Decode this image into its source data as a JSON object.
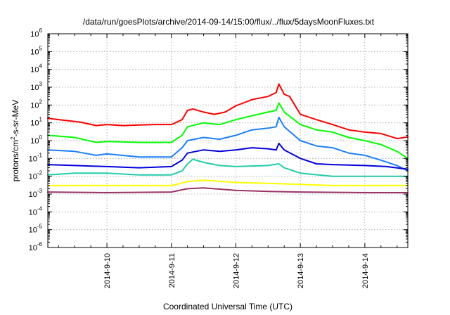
{
  "chart_data": {
    "type": "line",
    "title": "/data/run/goesPlots/archive/2014-09-14/15:00/flux/../flux/5daysMoonFluxes.txt",
    "xlabel": "Coordinated Universal Time (UTC)",
    "ylabel": {
      "base": "protons/cm",
      "sup": "2",
      "rest": "-s-sr-MeV"
    },
    "x_unit": "days",
    "xlim": [
      "2014-09-09 02:00",
      "2014-09-14 16:00"
    ],
    "y_scale": "log",
    "ylim": [
      1e-06,
      1000000.0
    ],
    "grid": true,
    "legend": "none",
    "x_ticks": [
      {
        "label": "2014-9-10",
        "value": "2014-09-10"
      },
      {
        "label": "2014-9-11",
        "value": "2014-09-11"
      },
      {
        "label": "2014-9-12",
        "value": "2014-09-12"
      },
      {
        "label": "2014-9-13",
        "value": "2014-09-13"
      },
      {
        "label": "2014-9-14",
        "value": "2014-09-14"
      }
    ],
    "y_ticks": [
      {
        "base": "10",
        "exp": "-6",
        "value": 1e-06
      },
      {
        "base": "10",
        "exp": "-5",
        "value": 1e-05
      },
      {
        "base": "10",
        "exp": "-4",
        "value": 0.0001
      },
      {
        "base": "10",
        "exp": "-3",
        "value": 0.001
      },
      {
        "base": "10",
        "exp": "-2",
        "value": 0.01
      },
      {
        "base": "10",
        "exp": "-1",
        "value": 0.1
      },
      {
        "base": "10",
        "exp": "0",
        "value": 1
      },
      {
        "base": "10",
        "exp": "1",
        "value": 10
      },
      {
        "base": "10",
        "exp": "2",
        "value": 100
      },
      {
        "base": "10",
        "exp": "3",
        "value": 1000
      },
      {
        "base": "10",
        "exp": "4",
        "value": 10000
      },
      {
        "base": "10",
        "exp": "5",
        "value": 100000
      },
      {
        "base": "10",
        "exp": "6",
        "value": 1000000
      }
    ],
    "series": [
      {
        "color": "#ff0000",
        "points": [
          [
            "2014-09-09 02:00",
            18
          ],
          [
            "2014-09-09 08:00",
            14
          ],
          [
            "2014-09-09 14:00",
            11
          ],
          [
            "2014-09-09 20:00",
            7
          ],
          [
            "2014-09-10 00:00",
            8
          ],
          [
            "2014-09-10 06:00",
            7
          ],
          [
            "2014-09-10 12:00",
            7.5
          ],
          [
            "2014-09-10 18:00",
            8
          ],
          [
            "2014-09-11 00:00",
            8
          ],
          [
            "2014-09-11 04:00",
            15
          ],
          [
            "2014-09-11 06:00",
            50
          ],
          [
            "2014-09-11 08:00",
            60
          ],
          [
            "2014-09-11 12:00",
            40
          ],
          [
            "2014-09-11 16:00",
            30
          ],
          [
            "2014-09-11 20:00",
            40
          ],
          [
            "2014-09-12 00:00",
            90
          ],
          [
            "2014-09-12 06:00",
            200
          ],
          [
            "2014-09-12 12:00",
            300
          ],
          [
            "2014-09-12 15:00",
            500
          ],
          [
            "2014-09-12 16:00",
            1500
          ],
          [
            "2014-09-12 18:00",
            400
          ],
          [
            "2014-09-12 20:00",
            300
          ],
          [
            "2014-09-13 00:00",
            30
          ],
          [
            "2014-09-13 06:00",
            15
          ],
          [
            "2014-09-13 12:00",
            8
          ],
          [
            "2014-09-13 18:00",
            4
          ],
          [
            "2014-09-14 00:00",
            3
          ],
          [
            "2014-09-14 06:00",
            2.5
          ],
          [
            "2014-09-14 12:00",
            1.3
          ],
          [
            "2014-09-14 16:00",
            1.6
          ]
        ]
      },
      {
        "color": "#00ff00",
        "points": [
          [
            "2014-09-09 02:00",
            2
          ],
          [
            "2014-09-09 12:00",
            1.5
          ],
          [
            "2014-09-09 20:00",
            0.8
          ],
          [
            "2014-09-10 00:00",
            0.9
          ],
          [
            "2014-09-10 12:00",
            0.8
          ],
          [
            "2014-09-11 00:00",
            0.8
          ],
          [
            "2014-09-11 04:00",
            2
          ],
          [
            "2014-09-11 06:00",
            6
          ],
          [
            "2014-09-11 12:00",
            10
          ],
          [
            "2014-09-11 18:00",
            8
          ],
          [
            "2014-09-12 00:00",
            15
          ],
          [
            "2014-09-12 06:00",
            25
          ],
          [
            "2014-09-12 12:00",
            40
          ],
          [
            "2014-09-12 15:00",
            50
          ],
          [
            "2014-09-12 16:00",
            130
          ],
          [
            "2014-09-12 18:00",
            40
          ],
          [
            "2014-09-13 00:00",
            8
          ],
          [
            "2014-09-13 06:00",
            4
          ],
          [
            "2014-09-13 12:00",
            3
          ],
          [
            "2014-09-13 18:00",
            1.5
          ],
          [
            "2014-09-14 00:00",
            1
          ],
          [
            "2014-09-14 06:00",
            0.6
          ],
          [
            "2014-09-14 12:00",
            0.25
          ],
          [
            "2014-09-14 16:00",
            0.1
          ]
        ]
      },
      {
        "color": "#1a7fff",
        "points": [
          [
            "2014-09-09 02:00",
            0.3
          ],
          [
            "2014-09-09 12:00",
            0.25
          ],
          [
            "2014-09-09 20:00",
            0.15
          ],
          [
            "2014-09-10 00:00",
            0.18
          ],
          [
            "2014-09-10 12:00",
            0.12
          ],
          [
            "2014-09-11 00:00",
            0.12
          ],
          [
            "2014-09-11 04:00",
            0.4
          ],
          [
            "2014-09-11 06:00",
            1
          ],
          [
            "2014-09-11 12:00",
            1.5
          ],
          [
            "2014-09-11 18:00",
            1.2
          ],
          [
            "2014-09-12 00:00",
            2
          ],
          [
            "2014-09-12 06:00",
            4
          ],
          [
            "2014-09-12 12:00",
            5
          ],
          [
            "2014-09-12 15:00",
            6
          ],
          [
            "2014-09-12 16:00",
            20
          ],
          [
            "2014-09-12 18:00",
            6
          ],
          [
            "2014-09-13 00:00",
            1
          ],
          [
            "2014-09-13 06:00",
            0.5
          ],
          [
            "2014-09-13 12:00",
            0.4
          ],
          [
            "2014-09-13 18:00",
            0.2
          ],
          [
            "2014-09-14 00:00",
            0.15
          ],
          [
            "2014-09-14 06:00",
            0.08
          ],
          [
            "2014-09-14 12:00",
            0.04
          ],
          [
            "2014-09-14 16:00",
            0.02
          ]
        ]
      },
      {
        "color": "#0000dd",
        "points": [
          [
            "2014-09-09 02:00",
            0.045
          ],
          [
            "2014-09-09 12:00",
            0.04
          ],
          [
            "2014-09-10 00:00",
            0.035
          ],
          [
            "2014-09-10 12:00",
            0.03
          ],
          [
            "2014-09-11 00:00",
            0.035
          ],
          [
            "2014-09-11 04:00",
            0.08
          ],
          [
            "2014-09-11 06:00",
            0.2
          ],
          [
            "2014-09-11 12:00",
            0.3
          ],
          [
            "2014-09-11 18:00",
            0.25
          ],
          [
            "2014-09-12 00:00",
            0.3
          ],
          [
            "2014-09-12 06:00",
            0.4
          ],
          [
            "2014-09-12 12:00",
            0.35
          ],
          [
            "2014-09-12 15:00",
            0.3
          ],
          [
            "2014-09-12 16:00",
            0.7
          ],
          [
            "2014-09-12 18:00",
            0.3
          ],
          [
            "2014-09-13 00:00",
            0.1
          ],
          [
            "2014-09-13 06:00",
            0.05
          ],
          [
            "2014-09-13 12:00",
            0.045
          ],
          [
            "2014-09-14 00:00",
            0.04
          ],
          [
            "2014-09-14 08:00",
            0.035
          ],
          [
            "2014-09-14 16:00",
            0.025
          ]
        ]
      },
      {
        "color": "#22ccaa",
        "points": [
          [
            "2014-09-09 02:00",
            0.012
          ],
          [
            "2014-09-09 12:00",
            0.015
          ],
          [
            "2014-09-10 00:00",
            0.015
          ],
          [
            "2014-09-10 12:00",
            0.012
          ],
          [
            "2014-09-11 00:00",
            0.012
          ],
          [
            "2014-09-11 04:00",
            0.02
          ],
          [
            "2014-09-11 06:00",
            0.05
          ],
          [
            "2014-09-11 08:00",
            0.09
          ],
          [
            "2014-09-11 12:00",
            0.06
          ],
          [
            "2014-09-11 18:00",
            0.04
          ],
          [
            "2014-09-12 00:00",
            0.035
          ],
          [
            "2014-09-12 12:00",
            0.04
          ],
          [
            "2014-09-12 16:00",
            0.05
          ],
          [
            "2014-09-12 18:00",
            0.03
          ],
          [
            "2014-09-13 00:00",
            0.015
          ],
          [
            "2014-09-13 12:00",
            0.01
          ],
          [
            "2014-09-14 00:00",
            0.01
          ],
          [
            "2014-09-14 16:00",
            0.01
          ]
        ]
      },
      {
        "color": "#ffff00",
        "points": [
          [
            "2014-09-09 02:00",
            0.003
          ],
          [
            "2014-09-10 00:00",
            0.003
          ],
          [
            "2014-09-11 00:00",
            0.003
          ],
          [
            "2014-09-11 06:00",
            0.005
          ],
          [
            "2014-09-11 12:00",
            0.006
          ],
          [
            "2014-09-12 00:00",
            0.0045
          ],
          [
            "2014-09-12 12:00",
            0.004
          ],
          [
            "2014-09-13 00:00",
            0.0035
          ],
          [
            "2014-09-13 12:00",
            0.003
          ],
          [
            "2014-09-14 00:00",
            0.003
          ],
          [
            "2014-09-14 16:00",
            0.003
          ]
        ]
      },
      {
        "color": "#993366",
        "points": [
          [
            "2014-09-09 02:00",
            0.0013
          ],
          [
            "2014-09-10 00:00",
            0.0012
          ],
          [
            "2014-09-11 00:00",
            0.0013
          ],
          [
            "2014-09-11 06:00",
            0.002
          ],
          [
            "2014-09-11 12:00",
            0.0022
          ],
          [
            "2014-09-12 00:00",
            0.0016
          ],
          [
            "2014-09-12 12:00",
            0.0014
          ],
          [
            "2014-09-13 00:00",
            0.0013
          ],
          [
            "2014-09-14 00:00",
            0.0012
          ],
          [
            "2014-09-14 16:00",
            0.0012
          ]
        ]
      }
    ]
  }
}
